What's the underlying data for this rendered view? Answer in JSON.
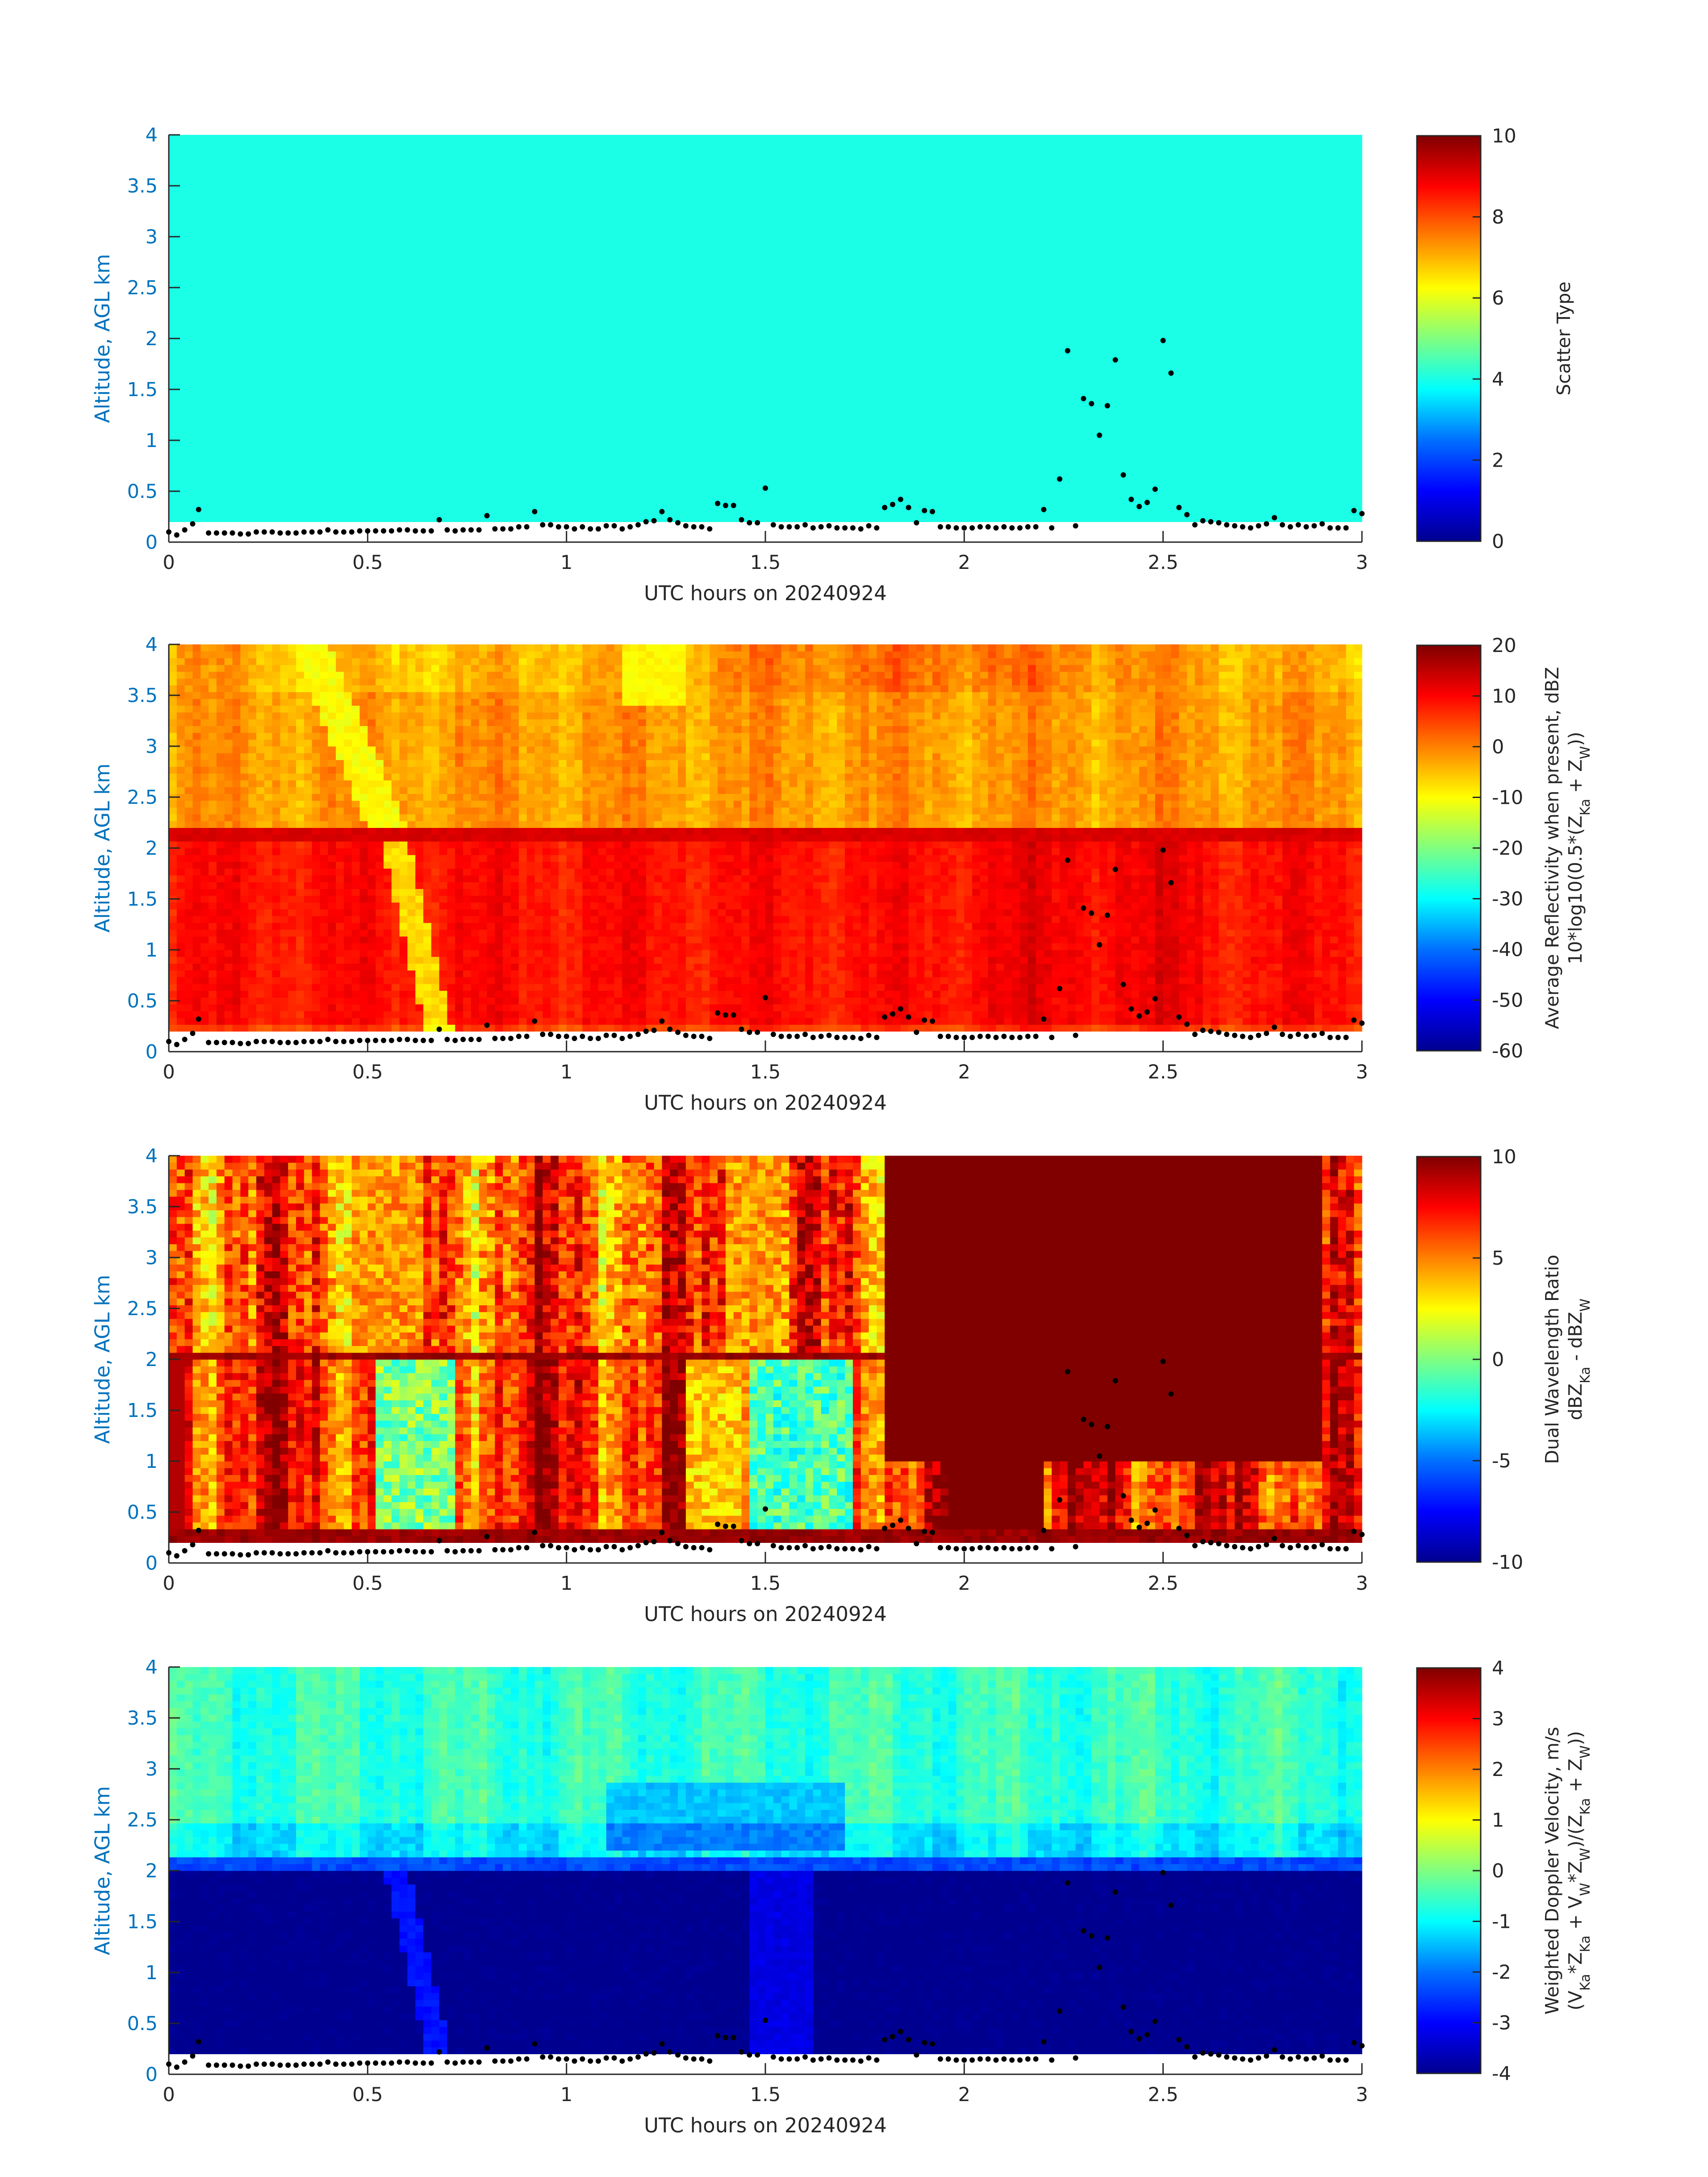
{
  "figure": {
    "panels": [
      {
        "id": "scatter-type",
        "kind": "uniform",
        "ylabel": "Altitude, AGL km",
        "xlabel": "UTC hours on 20240924",
        "colorbar": {
          "lines": [
            "Scatter Type"
          ],
          "vmin": 0,
          "vmax": 10,
          "ticks": [
            "0",
            "2",
            "4",
            "6",
            "8",
            "10"
          ],
          "tick_values": [
            0,
            2,
            4,
            6,
            8,
            10
          ]
        }
      },
      {
        "id": "reflectivity",
        "kind": "reflectivity",
        "ylabel": "Altitude, AGL km",
        "xlabel": "UTC hours on 20240924",
        "colorbar": {
          "lines": [
            "Average Reflectivity when present, dBZ",
            "10*log10(0.5*(Z_Ka + Z_W))"
          ],
          "vmin": -60,
          "vmax": 20,
          "ticks": [
            "-60",
            "-50",
            "-40",
            "-30",
            "-20",
            "-10",
            "0",
            "10",
            "20"
          ],
          "tick_values": [
            -60,
            -50,
            -40,
            -30,
            -20,
            -10,
            0,
            10,
            20
          ]
        }
      },
      {
        "id": "dwr",
        "kind": "dwr",
        "ylabel": "Altitude, AGL km",
        "xlabel": "UTC hours on 20240924",
        "colorbar": {
          "lines": [
            "Dual Wavelength Ratio",
            "dBZ_Ka - dBZ_W"
          ],
          "vmin": -10,
          "vmax": 10,
          "ticks": [
            "-10",
            "-5",
            "0",
            "5",
            "10"
          ],
          "tick_values": [
            -10,
            -5,
            0,
            5,
            10
          ]
        }
      },
      {
        "id": "doppler",
        "kind": "doppler",
        "ylabel": "Altitude, AGL km",
        "xlabel": "UTC hours on 20240924",
        "colorbar": {
          "lines": [
            "Weighted Doppler Velocity, m/s",
            "(V_Ka*Z_Ka + V_W*Z_W)/(Z_Ka + Z_W))"
          ],
          "vmin": -4,
          "vmax": 4,
          "ticks": [
            "-4",
            "-3",
            "-2",
            "-1",
            "0",
            "1",
            "2",
            "3",
            "4"
          ],
          "tick_values": [
            -4,
            -3,
            -2,
            -1,
            0,
            1,
            2,
            3,
            4
          ]
        }
      }
    ]
  },
  "chart_data": {
    "type": "heatmap",
    "x_ticks": [
      "0",
      "0.5",
      "1",
      "1.5",
      "2",
      "2.5",
      "3"
    ],
    "y_ticks": [
      "0",
      "0.5",
      "1",
      "1.5",
      "2",
      "2.5",
      "3",
      "3.5",
      "4"
    ],
    "xlim": [
      0,
      3
    ],
    "ylim": [
      0,
      4
    ],
    "colormap": "jet",
    "approx_fields": {
      "scatter_type": {
        "value_everywhere": 4,
        "bottom_km": 0.18
      },
      "reflectivity_dBZ": {
        "above_2_1_km": -2,
        "band_2_05_to_2_15_km": 12,
        "below_2_km": 8,
        "bright_streak_hours": [
          0.55,
          0.68
        ]
      },
      "dwr_dB": {
        "above_2_km": 7,
        "below_2_km_light_region_hours": [
          0.52,
          0.72,
          1.3,
          1.75
        ],
        "saturated_region_hours": [
          1.8,
          2.9
        ]
      },
      "doppler_m_s": {
        "above_2_1_km": -0.8,
        "below_2_km": -4
      }
    },
    "overlay_points": {
      "name": "cloud base heights",
      "x": [
        0.0,
        0.02,
        0.04,
        0.06,
        0.075,
        0.1,
        0.12,
        0.14,
        0.16,
        0.18,
        0.2,
        0.22,
        0.24,
        0.26,
        0.28,
        0.3,
        0.32,
        0.34,
        0.36,
        0.38,
        0.4,
        0.42,
        0.44,
        0.46,
        0.48,
        0.5,
        0.52,
        0.54,
        0.56,
        0.58,
        0.6,
        0.62,
        0.64,
        0.66,
        0.68,
        0.7,
        0.72,
        0.74,
        0.76,
        0.78,
        0.8,
        0.82,
        0.84,
        0.86,
        0.88,
        0.9,
        0.92,
        0.94,
        0.96,
        0.98,
        1.0,
        1.02,
        1.04,
        1.06,
        1.08,
        1.1,
        1.12,
        1.14,
        1.16,
        1.18,
        1.2,
        1.22,
        1.24,
        1.26,
        1.28,
        1.3,
        1.32,
        1.34,
        1.36,
        1.38,
        1.4,
        1.42,
        1.44,
        1.46,
        1.48,
        1.5,
        1.52,
        1.54,
        1.56,
        1.58,
        1.6,
        1.62,
        1.64,
        1.66,
        1.68,
        1.7,
        1.72,
        1.74,
        1.76,
        1.78,
        1.8,
        1.82,
        1.84,
        1.86,
        1.88,
        1.9,
        1.92,
        1.94,
        1.96,
        1.98,
        2.0,
        2.02,
        2.04,
        2.06,
        2.08,
        2.1,
        2.12,
        2.14,
        2.16,
        2.18,
        2.2,
        2.22,
        2.24,
        2.26,
        2.28,
        2.3,
        2.32,
        2.34,
        2.36,
        2.38,
        2.4,
        2.42,
        2.44,
        2.46,
        2.48,
        2.5,
        2.52,
        2.54,
        2.56,
        2.58,
        2.6,
        2.62,
        2.64,
        2.66,
        2.68,
        2.7,
        2.72,
        2.74,
        2.76,
        2.78,
        2.8,
        2.82,
        2.84,
        2.86,
        2.88,
        2.9,
        2.92,
        2.94,
        2.96,
        2.98,
        3.0
      ],
      "y": [
        0.1,
        0.07,
        0.12,
        0.18,
        0.32,
        0.09,
        0.09,
        0.09,
        0.09,
        0.08,
        0.08,
        0.1,
        0.1,
        0.1,
        0.09,
        0.09,
        0.09,
        0.1,
        0.1,
        0.1,
        0.12,
        0.1,
        0.1,
        0.1,
        0.11,
        0.11,
        0.11,
        0.11,
        0.11,
        0.12,
        0.12,
        0.11,
        0.11,
        0.11,
        0.22,
        0.12,
        0.11,
        0.12,
        0.12,
        0.12,
        0.26,
        0.13,
        0.13,
        0.13,
        0.15,
        0.15,
        0.3,
        0.17,
        0.17,
        0.15,
        0.15,
        0.13,
        0.15,
        0.13,
        0.13,
        0.16,
        0.16,
        0.13,
        0.15,
        0.17,
        0.2,
        0.21,
        0.3,
        0.22,
        0.19,
        0.16,
        0.15,
        0.15,
        0.13,
        0.38,
        0.36,
        0.36,
        0.22,
        0.19,
        0.19,
        0.53,
        0.17,
        0.15,
        0.15,
        0.15,
        0.17,
        0.14,
        0.15,
        0.16,
        0.14,
        0.14,
        0.14,
        0.13,
        0.16,
        0.14,
        0.34,
        0.37,
        0.42,
        0.34,
        0.19,
        0.31,
        0.3,
        0.15,
        0.15,
        0.14,
        0.14,
        0.14,
        0.15,
        0.15,
        0.14,
        0.15,
        0.14,
        0.14,
        0.15,
        0.15,
        0.32,
        0.14,
        0.62,
        1.88,
        0.16,
        1.41,
        1.36,
        1.05,
        1.34,
        1.79,
        0.66,
        0.42,
        0.35,
        0.39,
        0.52,
        1.98,
        1.66,
        0.34,
        0.27,
        0.17,
        0.21,
        0.2,
        0.19,
        0.17,
        0.16,
        0.15,
        0.14,
        0.16,
        0.18,
        0.24,
        0.17,
        0.15,
        0.17,
        0.15,
        0.16,
        0.18,
        0.14,
        0.14,
        0.14,
        0.31,
        0.28
      ]
    }
  }
}
